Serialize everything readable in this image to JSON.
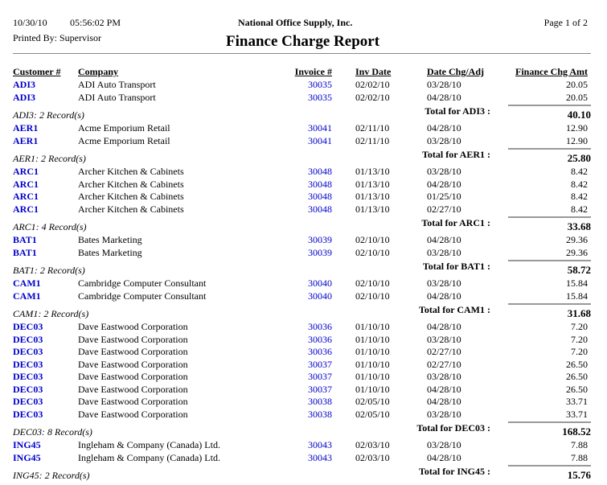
{
  "header": {
    "date": "10/30/10",
    "time": "05:56:02 PM",
    "company": "National Office Supply, Inc.",
    "page": "Page 1 of 2",
    "printed_by": "Printed By: Supervisor",
    "title": "Finance Charge Report"
  },
  "columns": {
    "customer": "Customer #",
    "company": "Company",
    "invoice": "Invoice #",
    "inv_date": "Inv Date",
    "date_chg": "Date Chg/Adj",
    "amount": "Finance Chg Amt"
  },
  "groups": [
    {
      "records": "ADI3: 2 Record(s)",
      "total_label": "Total for ADI3 :",
      "total": "40.10",
      "rows": [
        {
          "cust": "ADI3",
          "company": "ADI Auto Transport",
          "invoice": "30035",
          "inv_date": "02/02/10",
          "date_chg": "03/28/10",
          "amount": "20.05"
        },
        {
          "cust": "ADI3",
          "company": "ADI Auto Transport",
          "invoice": "30035",
          "inv_date": "02/02/10",
          "date_chg": "04/28/10",
          "amount": "20.05"
        }
      ]
    },
    {
      "records": "AER1: 2 Record(s)",
      "total_label": "Total for AER1 :",
      "total": "25.80",
      "rows": [
        {
          "cust": "AER1",
          "company": "Acme Emporium Retail",
          "invoice": "30041",
          "inv_date": "02/11/10",
          "date_chg": "04/28/10",
          "amount": "12.90"
        },
        {
          "cust": "AER1",
          "company": "Acme Emporium Retail",
          "invoice": "30041",
          "inv_date": "02/11/10",
          "date_chg": "03/28/10",
          "amount": "12.90"
        }
      ]
    },
    {
      "records": "ARC1: 4 Record(s)",
      "total_label": "Total for ARC1 :",
      "total": "33.68",
      "rows": [
        {
          "cust": "ARC1",
          "company": "Archer Kitchen & Cabinets",
          "invoice": "30048",
          "inv_date": "01/13/10",
          "date_chg": "03/28/10",
          "amount": "8.42"
        },
        {
          "cust": "ARC1",
          "company": "Archer Kitchen & Cabinets",
          "invoice": "30048",
          "inv_date": "01/13/10",
          "date_chg": "04/28/10",
          "amount": "8.42"
        },
        {
          "cust": "ARC1",
          "company": "Archer Kitchen & Cabinets",
          "invoice": "30048",
          "inv_date": "01/13/10",
          "date_chg": "01/25/10",
          "amount": "8.42"
        },
        {
          "cust": "ARC1",
          "company": "Archer Kitchen & Cabinets",
          "invoice": "30048",
          "inv_date": "01/13/10",
          "date_chg": "02/27/10",
          "amount": "8.42"
        }
      ]
    },
    {
      "records": "BAT1: 2 Record(s)",
      "total_label": "Total for BAT1 :",
      "total": "58.72",
      "rows": [
        {
          "cust": "BAT1",
          "company": "Bates Marketing",
          "invoice": "30039",
          "inv_date": "02/10/10",
          "date_chg": "04/28/10",
          "amount": "29.36"
        },
        {
          "cust": "BAT1",
          "company": "Bates Marketing",
          "invoice": "30039",
          "inv_date": "02/10/10",
          "date_chg": "03/28/10",
          "amount": "29.36"
        }
      ]
    },
    {
      "records": "CAM1: 2 Record(s)",
      "total_label": "Total for CAM1 :",
      "total": "31.68",
      "rows": [
        {
          "cust": "CAM1",
          "company": "Cambridge Computer Consultant",
          "invoice": "30040",
          "inv_date": "02/10/10",
          "date_chg": "03/28/10",
          "amount": "15.84"
        },
        {
          "cust": "CAM1",
          "company": "Cambridge Computer Consultant",
          "invoice": "30040",
          "inv_date": "02/10/10",
          "date_chg": "04/28/10",
          "amount": "15.84"
        }
      ]
    },
    {
      "records": "DEC03: 8 Record(s)",
      "total_label": "Total for DEC03 :",
      "total": "168.52",
      "rows": [
        {
          "cust": "DEC03",
          "company": "Dave Eastwood Corporation",
          "invoice": "30036",
          "inv_date": "01/10/10",
          "date_chg": "04/28/10",
          "amount": "7.20"
        },
        {
          "cust": "DEC03",
          "company": "Dave Eastwood Corporation",
          "invoice": "30036",
          "inv_date": "01/10/10",
          "date_chg": "03/28/10",
          "amount": "7.20"
        },
        {
          "cust": "DEC03",
          "company": "Dave Eastwood Corporation",
          "invoice": "30036",
          "inv_date": "01/10/10",
          "date_chg": "02/27/10",
          "amount": "7.20"
        },
        {
          "cust": "DEC03",
          "company": "Dave Eastwood Corporation",
          "invoice": "30037",
          "inv_date": "01/10/10",
          "date_chg": "02/27/10",
          "amount": "26.50"
        },
        {
          "cust": "DEC03",
          "company": "Dave Eastwood Corporation",
          "invoice": "30037",
          "inv_date": "01/10/10",
          "date_chg": "03/28/10",
          "amount": "26.50"
        },
        {
          "cust": "DEC03",
          "company": "Dave Eastwood Corporation",
          "invoice": "30037",
          "inv_date": "01/10/10",
          "date_chg": "04/28/10",
          "amount": "26.50"
        },
        {
          "cust": "DEC03",
          "company": "Dave Eastwood Corporation",
          "invoice": "30038",
          "inv_date": "02/05/10",
          "date_chg": "04/28/10",
          "amount": "33.71"
        },
        {
          "cust": "DEC03",
          "company": "Dave Eastwood Corporation",
          "invoice": "30038",
          "inv_date": "02/05/10",
          "date_chg": "03/28/10",
          "amount": "33.71"
        }
      ]
    },
    {
      "records": "ING45: 2 Record(s)",
      "total_label": "Total for ING45 :",
      "total": "15.76",
      "rows": [
        {
          "cust": "ING45",
          "company": "Ingleham & Company (Canada) Ltd.",
          "invoice": "30043",
          "inv_date": "02/03/10",
          "date_chg": "03/28/10",
          "amount": "7.88"
        },
        {
          "cust": "ING45",
          "company": "Ingleham & Company (Canada) Ltd.",
          "invoice": "30043",
          "inv_date": "02/03/10",
          "date_chg": "04/28/10",
          "amount": "7.88"
        }
      ]
    }
  ]
}
